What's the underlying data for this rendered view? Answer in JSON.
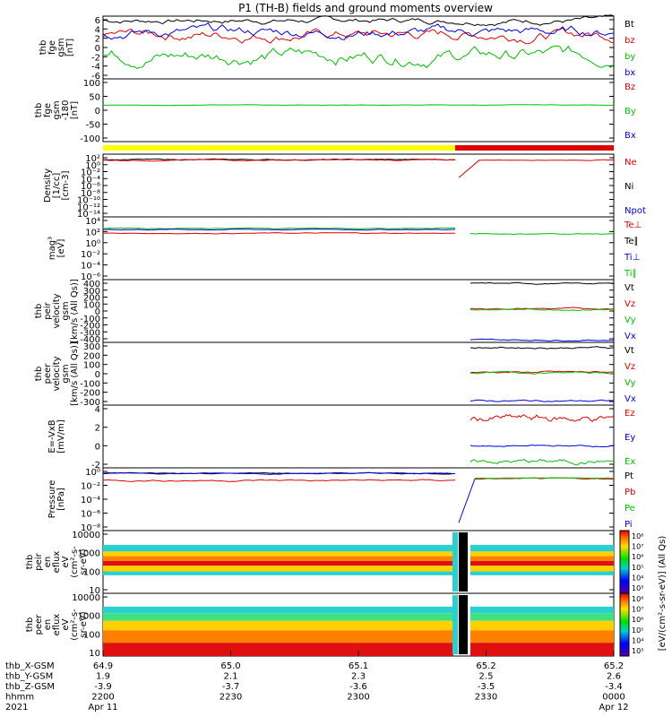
{
  "chart_data": {
    "type": "line",
    "title": "P1 (TH-B) fields and ground moments overview",
    "x_ticks": [
      "2200",
      "2230",
      "2300",
      "2330",
      "0000"
    ],
    "x_footer_rows": [
      {
        "label": "thb_X-GSM",
        "values": [
          "64.9",
          "65.0",
          "65.1",
          "65.2",
          "65.2"
        ]
      },
      {
        "label": "thb_Y-GSM",
        "values": [
          "1.9",
          "2.1",
          "2.3",
          "2.5",
          "2.6"
        ]
      },
      {
        "label": "thb_Z-GSM",
        "values": [
          "-3.9",
          "-3.7",
          "-3.6",
          "-3.5",
          "-3.4"
        ]
      },
      {
        "label": "hhmm",
        "values": [
          "2200",
          "2230",
          "2300",
          "2330",
          "0000"
        ]
      },
      {
        "label": "2021",
        "values": [
          "Apr 11",
          "",
          "",
          "",
          "Apr 12"
        ]
      }
    ],
    "panels": [
      {
        "ylabel": [
          "thb",
          "fge",
          "gsm",
          "[nT]"
        ],
        "ticks": [
          "6",
          "4",
          "2",
          "0",
          "-2",
          "-4",
          "-6"
        ],
        "ylim": [
          -6,
          6
        ],
        "legend": [
          {
            "name": "Bt",
            "color": "#000000"
          },
          {
            "name": "bz",
            "color": "#e00000"
          },
          {
            "name": "by",
            "color": "#00c000"
          },
          {
            "name": "bx",
            "color": "#0000e0"
          }
        ]
      },
      {
        "ylabel": [
          "thb",
          "fge",
          "gsm",
          "-180",
          "[nT]"
        ],
        "ticks": [
          "100",
          "50",
          "0",
          "-50",
          "-100"
        ],
        "ylim": [
          -120,
          120
        ],
        "legend": [
          {
            "name": "Bz",
            "color": "#e00000"
          },
          {
            "name": "By",
            "color": "#00c000"
          },
          {
            "name": "Bx",
            "color": "#0000e0"
          }
        ]
      },
      {
        "ylabel": [
          "Density",
          "[1/cc]",
          "[cm-3]"
        ],
        "ticks": [
          "10²",
          "10⁰",
          "10⁻²",
          "10⁻⁴",
          "10⁻⁶",
          "10⁻⁸",
          "10⁻¹⁰",
          "10⁻¹²",
          "10⁻¹⁴"
        ],
        "ylim": [
          -14,
          2
        ],
        "legend": [
          {
            "name": "Ne",
            "color": "#e00000"
          },
          {
            "name": "Ni",
            "color": "#000000"
          },
          {
            "name": "Npot",
            "color": "#0000e0"
          }
        ]
      },
      {
        "ylabel": [
          "mag³",
          "[eV]"
        ],
        "ticks": [
          "10⁴",
          "10²",
          "10⁰",
          "10⁻²",
          "10⁻⁴",
          "10⁻⁶"
        ],
        "ylim": [
          -6,
          4
        ],
        "legend": [
          {
            "name": "Te⊥",
            "color": "#e00000"
          },
          {
            "name": "Te∥",
            "color": "#000000"
          },
          {
            "name": "Ti⊥",
            "color": "#0000e0"
          },
          {
            "name": "Ti∥",
            "color": "#00c000"
          }
        ]
      },
      {
        "ylabel": [
          "thb",
          "peir",
          "velocity",
          "gsm",
          "[km/s (All Qs)]"
        ],
        "ticks": [
          "400",
          "300",
          "200",
          "100",
          "0",
          "-100",
          "-200",
          "-300",
          "-400"
        ],
        "ylim": [
          -400,
          400
        ],
        "legend": [
          {
            "name": "Vt",
            "color": "#000000"
          },
          {
            "name": "Vz",
            "color": "#e00000"
          },
          {
            "name": "Vy",
            "color": "#00c000"
          },
          {
            "name": "Vx",
            "color": "#0000e0"
          }
        ]
      },
      {
        "ylabel": [
          "thb",
          "peer",
          "velocity",
          "gsm",
          "[km/s (All Qs)]"
        ],
        "ticks": [
          "300",
          "200",
          "100",
          "0",
          "-100",
          "-200",
          "-300"
        ],
        "ylim": [
          -300,
          300
        ],
        "legend": [
          {
            "name": "Vt",
            "color": "#000000"
          },
          {
            "name": "Vz",
            "color": "#e00000"
          },
          {
            "name": "Vy",
            "color": "#00c000"
          },
          {
            "name": "Vx",
            "color": "#0000e0"
          }
        ]
      },
      {
        "ylabel": [
          "E=-VxB",
          "[mV/m]"
        ],
        "ticks": [
          "4",
          "2",
          "0",
          "-2"
        ],
        "ylim": [
          -2,
          4
        ],
        "legend": [
          {
            "name": "Ez",
            "color": "#e00000"
          },
          {
            "name": "Ey",
            "color": "#0000e0"
          },
          {
            "name": "Ex",
            "color": "#00c000"
          }
        ]
      },
      {
        "ylabel": [
          "Pressure",
          "[nPa]"
        ],
        "ticks": [
          "10⁰",
          "10⁻²",
          "10⁻⁴",
          "10⁻⁶",
          "10⁻⁸"
        ],
        "ylim": [
          -8,
          0
        ],
        "legend": [
          {
            "name": "Pt",
            "color": "#000000"
          },
          {
            "name": "Pb",
            "color": "#e00000"
          },
          {
            "name": "Pe",
            "color": "#00c000"
          },
          {
            "name": "Pi",
            "color": "#0000e0"
          }
        ]
      },
      {
        "ylabel": [
          "thb",
          "peir",
          "en",
          "eflux",
          "eV",
          "(cm²-s-",
          "sr-eV)"
        ],
        "ticks": [
          "10000",
          "1000",
          "100",
          "10"
        ],
        "ylim": [
          1,
          4.3
        ]
      },
      {
        "ylabel": [
          "thb",
          "peer",
          "en",
          "eflux",
          "eV",
          "(cm²-s-",
          "sr-eV)"
        ],
        "ticks": [
          "10000",
          "1000",
          "100",
          "10"
        ],
        "ylim": [
          1,
          4.3
        ]
      }
    ],
    "colorbar": {
      "ticks": [
        "10⁸",
        "10⁷",
        "10⁶",
        "10⁵",
        "10⁴",
        "10³"
      ],
      "label": "[eV/(cm²-s-sr-eV)] (All Qs)"
    }
  }
}
